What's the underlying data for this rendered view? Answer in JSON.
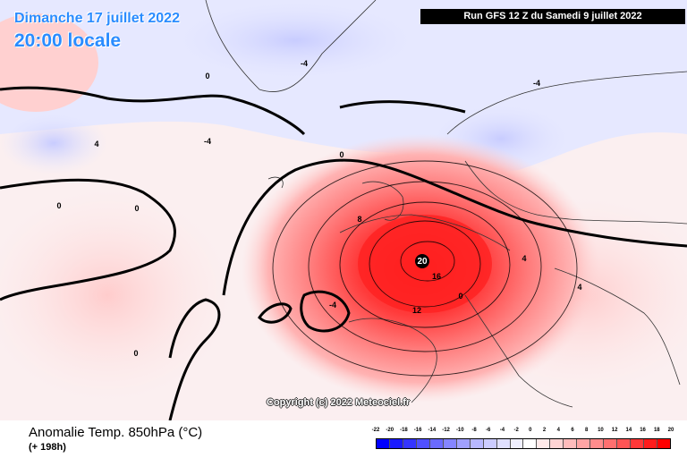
{
  "header": {
    "date": "Dimanche 17 juillet 2022",
    "time": "20:00 locale",
    "run": "Run GFS 12 Z du Samedi 9 juillet 2022"
  },
  "copyright": "Copyright (c) 2022 Meteociel.fr",
  "footer": {
    "title": "Anomalie Temp. 850hPa (°C)",
    "subtitle": "(+ 198h)"
  },
  "legend": {
    "labels": [
      "-22",
      "-20",
      "-18",
      "-16",
      "-14",
      "-12",
      "-10",
      "-8",
      "-6",
      "-4",
      "-2",
      "0",
      "2",
      "4",
      "6",
      "8",
      "10",
      "12",
      "14",
      "16",
      "18",
      "20"
    ],
    "colors": [
      "#0000ff",
      "#1a1aff",
      "#3535ff",
      "#5050ff",
      "#6a6aff",
      "#8585ff",
      "#a0a0ff",
      "#b8b8ff",
      "#ccccff",
      "#e0e0ff",
      "#f0f0ff",
      "#ffffff",
      "#ffeaea",
      "#ffd4d4",
      "#ffbcbc",
      "#ffa4a4",
      "#ff8c8c",
      "#ff7070",
      "#ff5555",
      "#ff3838",
      "#ff1c1c",
      "#ff0000"
    ]
  },
  "map_labels": {
    "center_max": "20",
    "center_16": "16",
    "alps_12": "12",
    "alps_0": "0",
    "west_8": "8",
    "north_4": "-4",
    "zero": "0",
    "four": "4",
    "neg4": "-4"
  },
  "colors": {
    "anomaly_hot": "#ff2a2a",
    "anomaly_warm": "#ffb0b0",
    "anomaly_cool": "#d8dcff",
    "contour": "#000000",
    "title_blue": "#2a8cff"
  }
}
